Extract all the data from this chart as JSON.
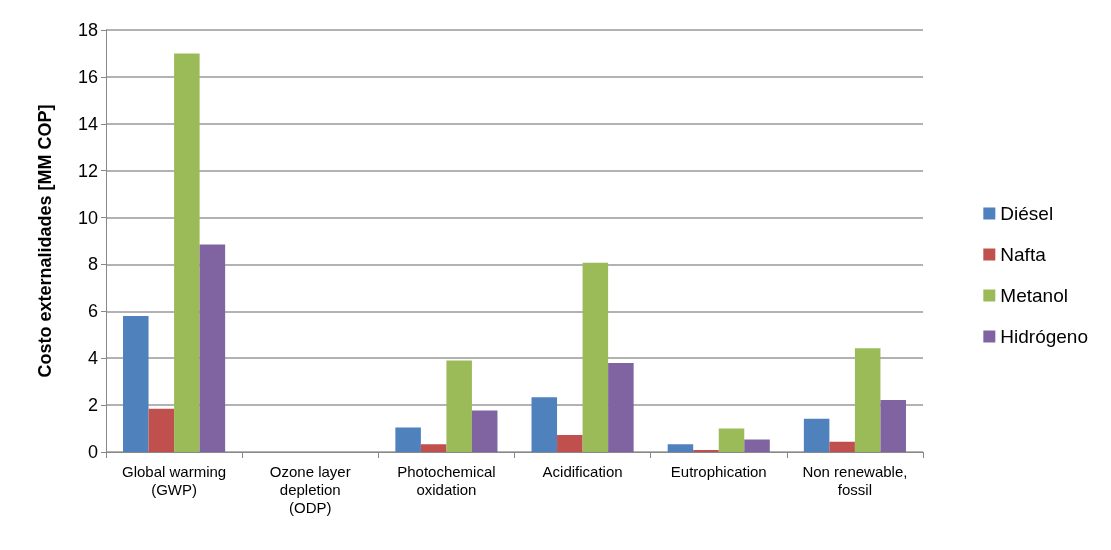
{
  "chart_data": {
    "type": "bar",
    "ylabel": "Costo externalidades [MM COP]",
    "categories": [
      "Global warming\n(GWP)",
      "Ozone layer\ndepletion\n(ODP)",
      "Photochemical\noxidation",
      "Acidification",
      "Eutrophication",
      "Non renewable,\nfossil"
    ],
    "series": [
      {
        "name": "Diésel",
        "color": "#4f81bd",
        "values": [
          5.8,
          0,
          1.05,
          2.33,
          0.33,
          1.42
        ]
      },
      {
        "name": "Nafta",
        "color": "#c0504d",
        "values": [
          1.85,
          0,
          0.33,
          0.73,
          0.09,
          0.44
        ]
      },
      {
        "name": "Metanol",
        "color": "#9bbb59",
        "values": [
          17.0,
          0,
          3.9,
          8.07,
          1.0,
          4.43
        ]
      },
      {
        "name": "Hidrógeno",
        "color": "#8064a2",
        "values": [
          8.85,
          0,
          1.77,
          3.8,
          0.53,
          2.22
        ]
      }
    ],
    "ylim": [
      0,
      18
    ],
    "yticks": [
      0,
      2,
      4,
      6,
      8,
      10,
      12,
      14,
      16,
      18
    ],
    "grid": "y",
    "legend": "right"
  }
}
